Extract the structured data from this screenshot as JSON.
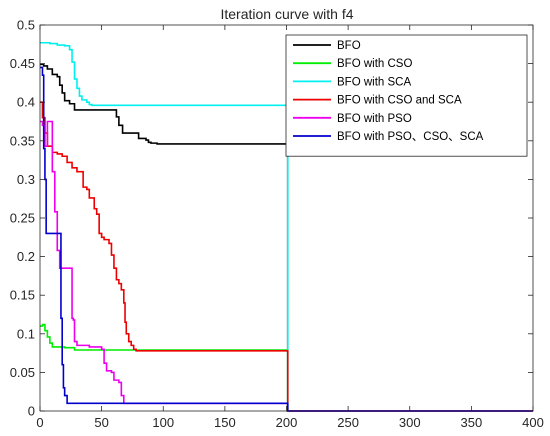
{
  "chart_data": {
    "type": "line",
    "title": "Iteration curve with f4",
    "xlabel": "",
    "ylabel": "",
    "xlim": [
      0,
      400
    ],
    "ylim": [
      0,
      0.5
    ],
    "grid": false,
    "legend_position": "top-right",
    "x_ticks": [
      "0",
      "50",
      "100",
      "150",
      "200",
      "250",
      "300",
      "350",
      "400"
    ],
    "y_ticks": [
      "0",
      "0.05",
      "0.1",
      "0.15",
      "0.2",
      "0.25",
      "0.3",
      "0.35",
      "0.4",
      "0.45",
      "0.5"
    ],
    "series": [
      {
        "name": "BFO",
        "color": "#000000",
        "points": [
          [
            0,
            0.449
          ],
          [
            3,
            0.447
          ],
          [
            6,
            0.443
          ],
          [
            9,
            0.443
          ],
          [
            10,
            0.436
          ],
          [
            14,
            0.433
          ],
          [
            16,
            0.422
          ],
          [
            18,
            0.412
          ],
          [
            20,
            0.402
          ],
          [
            22,
            0.402
          ],
          [
            24,
            0.398
          ],
          [
            26,
            0.398
          ],
          [
            28,
            0.39
          ],
          [
            58,
            0.39
          ],
          [
            62,
            0.381
          ],
          [
            64,
            0.37
          ],
          [
            67,
            0.36
          ],
          [
            78,
            0.36
          ],
          [
            80,
            0.353
          ],
          [
            86,
            0.351
          ],
          [
            88,
            0.348
          ],
          [
            90,
            0.347
          ],
          [
            95,
            0.346
          ],
          [
            200,
            0.346
          ],
          [
            201,
            0.0
          ],
          [
            400,
            0.0
          ]
        ]
      },
      {
        "name": "BFO with CSO",
        "color": "#00ee00",
        "points": [
          [
            0,
            0.11
          ],
          [
            2,
            0.112
          ],
          [
            4,
            0.104
          ],
          [
            6,
            0.096
          ],
          [
            8,
            0.088
          ],
          [
            10,
            0.083
          ],
          [
            20,
            0.082
          ],
          [
            28,
            0.079
          ],
          [
            200,
            0.078
          ],
          [
            201,
            0.0
          ],
          [
            400,
            0.0
          ]
        ]
      },
      {
        "name": "BFO with SCA",
        "color": "#00f0f0",
        "points": [
          [
            0,
            0.477
          ],
          [
            8,
            0.476
          ],
          [
            14,
            0.474
          ],
          [
            20,
            0.473
          ],
          [
            24,
            0.468
          ],
          [
            26,
            0.452
          ],
          [
            28,
            0.43
          ],
          [
            30,
            0.418
          ],
          [
            32,
            0.408
          ],
          [
            34,
            0.403
          ],
          [
            38,
            0.4
          ],
          [
            40,
            0.397
          ],
          [
            42,
            0.396
          ],
          [
            200,
            0.396
          ],
          [
            201,
            0.0
          ],
          [
            400,
            0.0
          ]
        ]
      },
      {
        "name": "BFO with CSO and SCA",
        "color": "#ee0000",
        "points": [
          [
            0,
            0.4
          ],
          [
            2,
            0.38
          ],
          [
            4,
            0.36
          ],
          [
            6,
            0.343
          ],
          [
            10,
            0.335
          ],
          [
            14,
            0.333
          ],
          [
            18,
            0.33
          ],
          [
            22,
            0.322
          ],
          [
            26,
            0.315
          ],
          [
            30,
            0.31
          ],
          [
            32,
            0.31
          ],
          [
            35,
            0.29
          ],
          [
            38,
            0.287
          ],
          [
            40,
            0.276
          ],
          [
            44,
            0.262
          ],
          [
            46,
            0.255
          ],
          [
            48,
            0.23
          ],
          [
            50,
            0.225
          ],
          [
            52,
            0.222
          ],
          [
            54,
            0.222
          ],
          [
            56,
            0.217
          ],
          [
            58,
            0.202
          ],
          [
            60,
            0.185
          ],
          [
            62,
            0.17
          ],
          [
            64,
            0.165
          ],
          [
            66,
            0.157
          ],
          [
            68,
            0.14
          ],
          [
            69,
            0.115
          ],
          [
            70,
            0.1
          ],
          [
            72,
            0.09
          ],
          [
            74,
            0.085
          ],
          [
            76,
            0.08
          ],
          [
            78,
            0.078
          ],
          [
            200,
            0.078
          ],
          [
            201,
            0.0
          ],
          [
            400,
            0.0
          ]
        ]
      },
      {
        "name": "BFO with PSO",
        "color": "#ee00ee",
        "points": [
          [
            0,
            0.375
          ],
          [
            2,
            0.37
          ],
          [
            4,
            0.343
          ],
          [
            6,
            0.375
          ],
          [
            8,
            0.375
          ],
          [
            10,
            0.31
          ],
          [
            12,
            0.258
          ],
          [
            14,
            0.208
          ],
          [
            16,
            0.185
          ],
          [
            25,
            0.185
          ],
          [
            26,
            0.12
          ],
          [
            27,
            0.118
          ],
          [
            28,
            0.09
          ],
          [
            30,
            0.085
          ],
          [
            40,
            0.083
          ],
          [
            50,
            0.08
          ],
          [
            52,
            0.062
          ],
          [
            54,
            0.052
          ],
          [
            58,
            0.05
          ],
          [
            60,
            0.04
          ],
          [
            64,
            0.037
          ],
          [
            66,
            0.02
          ],
          [
            68,
            0.01
          ],
          [
            200,
            0.01
          ],
          [
            201,
            0.0
          ],
          [
            400,
            0.0
          ]
        ]
      },
      {
        "name": "BFO with PSO、CSO、SCA",
        "color": "#0000cc",
        "points": [
          [
            0,
            0.445
          ],
          [
            1,
            0.445
          ],
          [
            2,
            0.435
          ],
          [
            3,
            0.34
          ],
          [
            4,
            0.3
          ],
          [
            5,
            0.23
          ],
          [
            16,
            0.23
          ],
          [
            17,
            0.12
          ],
          [
            18,
            0.06
          ],
          [
            19,
            0.03
          ],
          [
            20,
            0.02
          ],
          [
            22,
            0.01
          ],
          [
            200,
            0.01
          ],
          [
            201,
            0.0
          ],
          [
            400,
            0.0
          ]
        ]
      }
    ]
  }
}
